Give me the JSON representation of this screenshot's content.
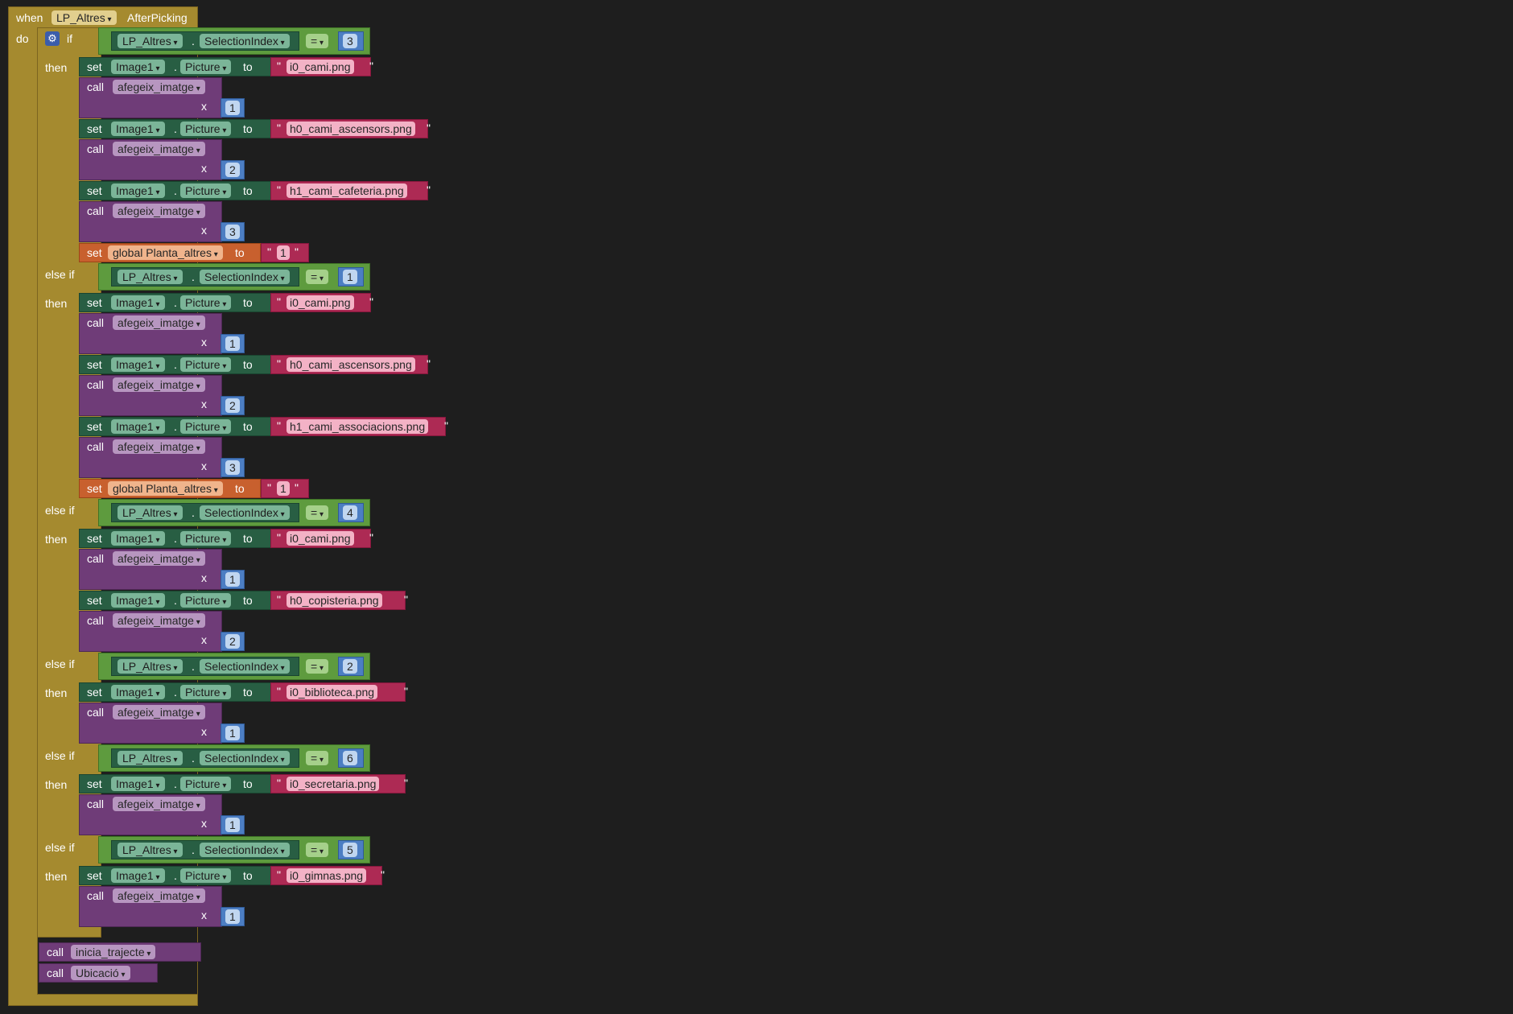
{
  "event": {
    "when": "when",
    "component": "LP_Altres",
    "name": "AfterPicking",
    "do": "do"
  },
  "kw": {
    "if": "if",
    "else_if": "else if",
    "then": "then",
    "set": "set",
    "call": "call",
    "to": "to",
    "x": "x",
    "dot": ".",
    "quote": "\""
  },
  "if_block": {
    "branches": [
      {
        "label": "if",
        "lhs_component": "LP_Altres",
        "lhs_prop": "SelectionIndex",
        "op": "=",
        "rhs": "3",
        "stmts": [
          {
            "type": "setpic",
            "component": "Image1",
            "prop": "Picture",
            "value": "i0_cami.png"
          },
          {
            "type": "call",
            "proc": "afegeix_imatge",
            "arg": "1"
          },
          {
            "type": "setpic",
            "component": "Image1",
            "prop": "Picture",
            "value": "h0_cami_ascensors.png"
          },
          {
            "type": "call",
            "proc": "afegeix_imatge",
            "arg": "2"
          },
          {
            "type": "setpic",
            "component": "Image1",
            "prop": "Picture",
            "value": "h1_cami_cafeteria.png"
          },
          {
            "type": "call",
            "proc": "afegeix_imatge",
            "arg": "3"
          },
          {
            "type": "setvar",
            "var": "global Planta_altres",
            "value": "1"
          }
        ]
      },
      {
        "label": "else if",
        "lhs_component": "LP_Altres",
        "lhs_prop": "SelectionIndex",
        "op": "=",
        "rhs": "1",
        "stmts": [
          {
            "type": "setpic",
            "component": "Image1",
            "prop": "Picture",
            "value": "i0_cami.png"
          },
          {
            "type": "call",
            "proc": "afegeix_imatge",
            "arg": "1"
          },
          {
            "type": "setpic",
            "component": "Image1",
            "prop": "Picture",
            "value": "h0_cami_ascensors.png"
          },
          {
            "type": "call",
            "proc": "afegeix_imatge",
            "arg": "2"
          },
          {
            "type": "setpic",
            "component": "Image1",
            "prop": "Picture",
            "value": "h1_cami_associacions.png"
          },
          {
            "type": "call",
            "proc": "afegeix_imatge",
            "arg": "3"
          },
          {
            "type": "setvar",
            "var": "global Planta_altres",
            "value": "1"
          }
        ]
      },
      {
        "label": "else if",
        "lhs_component": "LP_Altres",
        "lhs_prop": "SelectionIndex",
        "op": "=",
        "rhs": "4",
        "stmts": [
          {
            "type": "setpic",
            "component": "Image1",
            "prop": "Picture",
            "value": "i0_cami.png"
          },
          {
            "type": "call",
            "proc": "afegeix_imatge",
            "arg": "1"
          },
          {
            "type": "setpic",
            "component": "Image1",
            "prop": "Picture",
            "value": "h0_copisteria.png"
          },
          {
            "type": "call",
            "proc": "afegeix_imatge",
            "arg": "2"
          }
        ]
      },
      {
        "label": "else if",
        "lhs_component": "LP_Altres",
        "lhs_prop": "SelectionIndex",
        "op": "=",
        "rhs": "2",
        "stmts": [
          {
            "type": "setpic",
            "component": "Image1",
            "prop": "Picture",
            "value": "i0_biblioteca.png"
          },
          {
            "type": "call",
            "proc": "afegeix_imatge",
            "arg": "1"
          }
        ]
      },
      {
        "label": "else if",
        "lhs_component": "LP_Altres",
        "lhs_prop": "SelectionIndex",
        "op": "=",
        "rhs": "6",
        "stmts": [
          {
            "type": "setpic",
            "component": "Image1",
            "prop": "Picture",
            "value": "i0_secretaria.png"
          },
          {
            "type": "call",
            "proc": "afegeix_imatge",
            "arg": "1"
          }
        ]
      },
      {
        "label": "else if",
        "lhs_component": "LP_Altres",
        "lhs_prop": "SelectionIndex",
        "op": "=",
        "rhs": "5",
        "stmts": [
          {
            "type": "setpic",
            "component": "Image1",
            "prop": "Picture",
            "value": "i0_gimnas.png"
          },
          {
            "type": "call",
            "proc": "afegeix_imatge",
            "arg": "1"
          }
        ]
      }
    ]
  },
  "trailing_calls": [
    {
      "proc": "inicia_trajecte"
    },
    {
      "proc": "Ubicació"
    }
  ],
  "colors": {
    "background": "#1e1e1e",
    "control": "#a58a2f",
    "component_set": "#285e43",
    "compare": "#5e9b3e",
    "procedure": "#6f3c78",
    "text": "#ad2a54",
    "math": "#4c7ec3",
    "variable": "#c8602e"
  }
}
